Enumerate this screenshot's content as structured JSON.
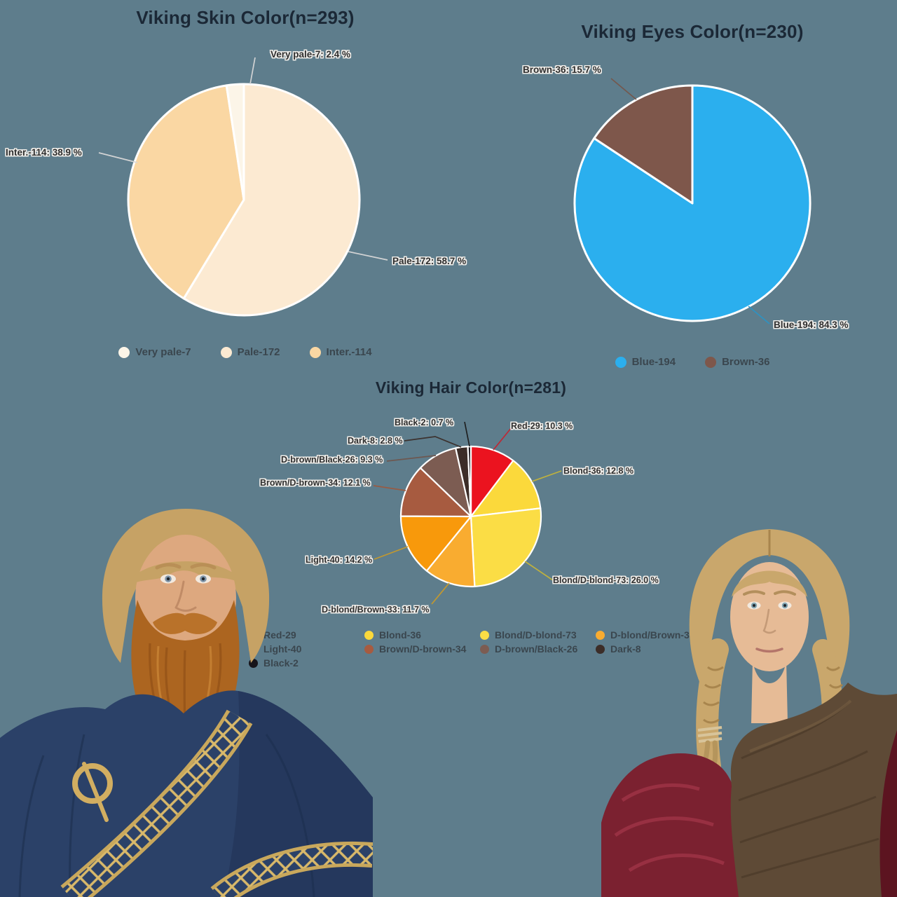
{
  "background": "#5E7D8C",
  "chart_data": [
    {
      "type": "pie",
      "title": "Viking Skin Color(n=293)",
      "categories": [
        "Pale-172",
        "Inter.-114",
        "Very pale-7"
      ],
      "values": [
        58.7,
        38.9,
        2.4
      ],
      "counts": [
        172,
        114,
        7
      ],
      "total_n": 293,
      "colors": [
        "#FCEAD2",
        "#FAD7A3",
        "#FCF5E8"
      ],
      "callouts": [
        "Pale-172: 58.7 %",
        "Inter.-114: 38.9 %",
        "Very pale-7: 2.4 %"
      ],
      "legend": [
        {
          "label": "Very pale-7",
          "color": "#FCF5E8"
        },
        {
          "label": "Pale-172",
          "color": "#FCEAD2"
        },
        {
          "label": "Inter.-114",
          "color": "#FAD7A3"
        }
      ],
      "legend_position": "bottom",
      "start_angle_deg": 0,
      "direction": "clockwise"
    },
    {
      "type": "pie",
      "title": "Viking Eyes Color(n=230)",
      "categories": [
        "Blue-194",
        "Brown-36"
      ],
      "values": [
        84.3,
        15.7
      ],
      "counts": [
        194,
        36
      ],
      "total_n": 230,
      "colors": [
        "#2BAFEE",
        "#7E574B"
      ],
      "callouts": [
        "Blue-194: 84.3 %",
        "Brown-36: 15.7 %"
      ],
      "legend": [
        {
          "label": "Blue-194",
          "color": "#2BAFEE"
        },
        {
          "label": "Brown-36",
          "color": "#7E574B"
        }
      ],
      "legend_position": "bottom",
      "start_angle_deg": 0,
      "direction": "clockwise"
    },
    {
      "type": "pie",
      "title": "Viking Hair Color(n=281)",
      "categories": [
        "Red-29",
        "Blond-36",
        "Blond/D-blond-73",
        "D-blond/Brown-33",
        "Light-40",
        "Brown/D-brown-34",
        "D-brown/Black-26",
        "Dark-8",
        "Black-2"
      ],
      "values": [
        10.3,
        12.8,
        26.0,
        11.7,
        14.2,
        12.1,
        9.3,
        2.8,
        0.7
      ],
      "counts": [
        29,
        36,
        73,
        33,
        40,
        34,
        26,
        8,
        2
      ],
      "total_n": 281,
      "colors": [
        "#EB131F",
        "#FBD93B",
        "#FBDD45",
        "#F9AC30",
        "#F8990B",
        "#A75B40",
        "#7C5C52",
        "#3C2D28",
        "#17141A"
      ],
      "callouts": [
        "Red-29: 10.3 %",
        "Blond-36: 12.8 %",
        "Blond/D-blond-73: 26.0 %",
        "D-blond/Brown-33: 11.7 %",
        "Light-40: 14.2 %",
        "Brown/D-brown-34: 12.1 %",
        "D-brown/Black-26: 9.3 %",
        "Dark-8: 2.8 %",
        "Black-2: 0.7 %"
      ],
      "legend": [
        {
          "label": "Red-29",
          "color": "#EB131F"
        },
        {
          "label": "Blond-36",
          "color": "#FBD93B"
        },
        {
          "label": "Blond/D-blond-73",
          "color": "#FBDD45"
        },
        {
          "label": "D-blond/Brown-33",
          "color": "#F9AC30"
        },
        {
          "label": "Light-40",
          "color": "#F8990B"
        },
        {
          "label": "Brown/D-brown-34",
          "color": "#A75B40"
        },
        {
          "label": "D-brown/Black-26",
          "color": "#7C5C52"
        },
        {
          "label": "Dark-8",
          "color": "#3C2D28"
        },
        {
          "label": "Black-2",
          "color": "#17141A"
        }
      ],
      "legend_position": "bottom",
      "start_angle_deg": 0,
      "direction": "clockwise"
    }
  ],
  "people": {
    "man": {
      "hair": "#C6A265",
      "hair_dark": "#A9854C",
      "skin": "#DDA87F",
      "skin_shadow": "#C98F67",
      "beard": "#AC6520",
      "beard_light": "#C98436",
      "beard_dark": "#8F4E15",
      "cloak": "#2B4168",
      "cloak_shadow": "#223457",
      "trim_gold": "#D2AE61",
      "eyes": "#7C93A8"
    },
    "woman": {
      "hair": "#C9A76C",
      "hair_dark": "#A8854D",
      "skin": "#E6BB96",
      "shawl": "#5E4A36",
      "shawl_dark": "#4C3B2A",
      "shawl_light": "#6F5940",
      "dress": "#7B2130",
      "dress_highlight": "#A23648",
      "dress_shadow": "#5C1420",
      "eyes": "#7FA3B0",
      "cord": "#D8C49A"
    }
  }
}
